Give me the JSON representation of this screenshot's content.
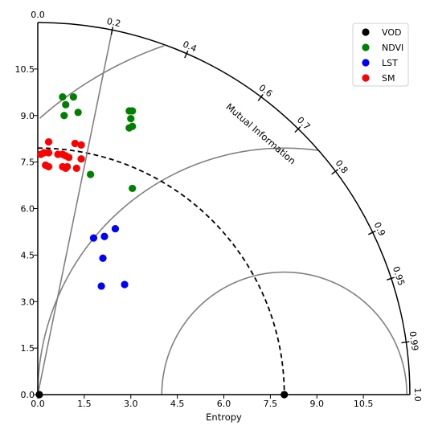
{
  "chart_data": {
    "type": "scatter",
    "subtype": "taylor-like polar diagram",
    "xlabel": "Entropy",
    "arc_label": "Mutual Information",
    "r_max": 12,
    "x_ticks": [
      0.0,
      1.5,
      3.0,
      4.5,
      6.0,
      7.5,
      9.0,
      10.5
    ],
    "x_tick_labels": [
      "0.0",
      "1.5",
      "3.0",
      "4.5",
      "6.0",
      "7.5",
      "9.0",
      "10.5"
    ],
    "y_ticks": [
      0.0,
      1.5,
      3.0,
      4.5,
      6.0,
      7.5,
      9.0,
      10.5
    ],
    "y_tick_labels": [
      "0.0",
      "1.5",
      "3.0",
      "4.5",
      "6.0",
      "7.5",
      "9.0",
      "10.5"
    ],
    "mi_ticks": [
      0.0,
      0.2,
      0.4,
      0.6,
      0.7,
      0.8,
      0.9,
      0.95,
      0.99,
      1.0
    ],
    "mi_tick_labels": [
      "0.0",
      "0.2",
      "0.4",
      "0.6",
      "0.7",
      "0.8",
      "0.9",
      "0.95",
      "0.99",
      "1.0"
    ],
    "reference_entropy": 7.95,
    "reference_arcs": [
      {
        "center_x": 7.95,
        "radius": 3.95,
        "style": "solid"
      },
      {
        "center_x": 7.95,
        "radius": 7.95,
        "style": "solid"
      },
      {
        "center_x": 7.95,
        "radius": 11.9,
        "style": "solid"
      }
    ],
    "legend_position": "top-right",
    "series": [
      {
        "name": "VOD",
        "color": "#000000",
        "points": [
          [
            7.95,
            0.0
          ],
          [
            0.05,
            0.0
          ]
        ]
      },
      {
        "name": "NDVI",
        "color": "#008000",
        "points": [
          [
            0.8,
            9.6
          ],
          [
            1.15,
            9.6
          ],
          [
            0.9,
            9.35
          ],
          [
            1.3,
            9.1
          ],
          [
            0.85,
            9.0
          ],
          [
            2.95,
            9.15
          ],
          [
            3.05,
            9.15
          ],
          [
            3.0,
            8.9
          ],
          [
            3.05,
            8.65
          ],
          [
            2.95,
            8.6
          ],
          [
            1.7,
            7.1
          ],
          [
            3.05,
            6.65
          ]
        ]
      },
      {
        "name": "LST",
        "color": "#0000ff",
        "points": [
          [
            1.8,
            5.05
          ],
          [
            2.15,
            5.1
          ],
          [
            2.5,
            5.35
          ],
          [
            2.1,
            4.4
          ],
          [
            2.05,
            3.5
          ],
          [
            2.8,
            3.55
          ]
        ]
      },
      {
        "name": "SM",
        "color": "#ff0000",
        "points": [
          [
            0.35,
            8.15
          ],
          [
            1.2,
            8.1
          ],
          [
            1.4,
            8.05
          ],
          [
            0.1,
            7.75
          ],
          [
            0.2,
            7.8
          ],
          [
            0.35,
            7.8
          ],
          [
            0.65,
            7.75
          ],
          [
            0.8,
            7.75
          ],
          [
            0.9,
            7.7
          ],
          [
            1.0,
            7.65
          ],
          [
            1.4,
            7.6
          ],
          [
            0.25,
            7.4
          ],
          [
            0.35,
            7.35
          ],
          [
            0.8,
            7.35
          ],
          [
            0.95,
            7.35
          ],
          [
            0.9,
            7.3
          ],
          [
            1.25,
            7.3
          ]
        ]
      }
    ]
  }
}
